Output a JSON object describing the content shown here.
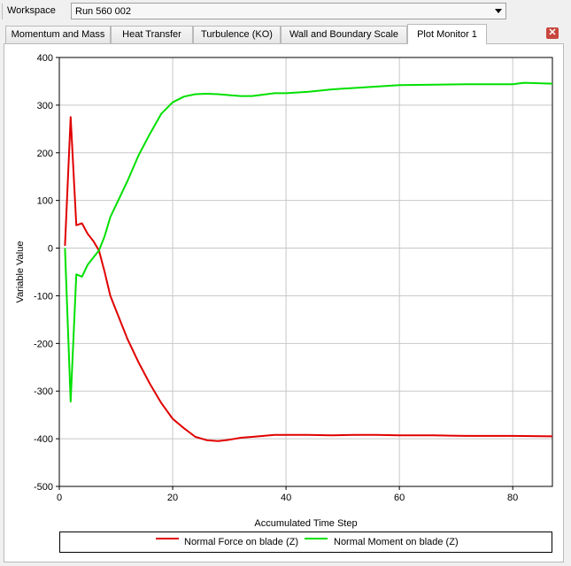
{
  "workspace": {
    "label": "Workspace",
    "selected": "Run 560 002"
  },
  "tabs": [
    {
      "label": "Momentum and Mass",
      "active": false
    },
    {
      "label": "Heat Transfer",
      "active": false
    },
    {
      "label": "Turbulence (KO)",
      "active": false
    },
    {
      "label": "Wall and Boundary Scale",
      "active": false
    },
    {
      "label": "Plot Monitor 1",
      "active": true
    }
  ],
  "close_icon": "close-icon",
  "chart_data": {
    "type": "line",
    "title": "",
    "xlabel": "Accumulated Time Step",
    "ylabel": "Variable Value",
    "xlim": [
      0,
      87
    ],
    "ylim": [
      -500,
      400
    ],
    "xticks": [
      0,
      20,
      40,
      60,
      80
    ],
    "yticks": [
      400,
      300,
      200,
      100,
      0,
      -100,
      -200,
      -300,
      -400,
      -500
    ],
    "grid": true,
    "legend_position": "bottom",
    "series": [
      {
        "name": "Normal Force on blade (Z)",
        "color": "#e00000",
        "x": [
          1,
          2,
          3,
          4,
          5,
          6,
          7,
          8,
          9,
          10,
          12,
          14,
          16,
          18,
          20,
          22,
          24,
          26,
          28,
          30,
          32,
          34,
          36,
          38,
          40,
          44,
          48,
          52,
          56,
          60,
          66,
          72,
          80,
          87
        ],
        "y": [
          5,
          275,
          48,
          52,
          30,
          15,
          -5,
          -50,
          -100,
          -130,
          -190,
          -240,
          -285,
          -325,
          -358,
          -378,
          -396,
          -403,
          -405,
          -402,
          -398,
          -396,
          -394,
          -392,
          -392,
          -392,
          -393,
          -392,
          -392,
          -393,
          -393,
          -394,
          -394,
          -395
        ]
      },
      {
        "name": "Normal Moment on blade (Z)",
        "color": "#00e000",
        "x": [
          1,
          2,
          3,
          4,
          5,
          6,
          7,
          8,
          9,
          10,
          12,
          14,
          16,
          18,
          20,
          22,
          24,
          26,
          28,
          30,
          32,
          34,
          36,
          38,
          40,
          44,
          48,
          52,
          56,
          60,
          66,
          72,
          80,
          82,
          87
        ],
        "y": [
          0,
          -322,
          -55,
          -60,
          -35,
          -20,
          -5,
          25,
          65,
          90,
          140,
          195,
          240,
          282,
          306,
          318,
          323,
          324,
          323,
          321,
          319,
          319,
          322,
          325,
          325,
          328,
          333,
          336,
          339,
          342,
          343,
          344,
          344,
          347,
          345
        ]
      }
    ]
  }
}
